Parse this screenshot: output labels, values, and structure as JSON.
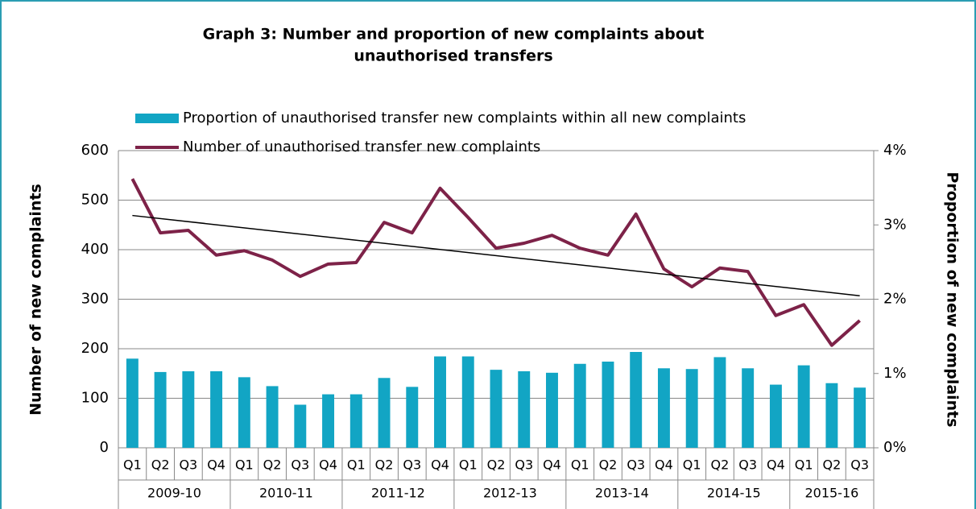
{
  "chart_data": {
    "type": "bar-line",
    "title": [
      "Graph 3:  Number and proportion of new complaints about",
      "unauthorised transfers"
    ],
    "y_label": "Number of new complaints",
    "y2_label": "Proportion of new complaints",
    "categories": [
      "Q1",
      "Q2",
      "Q3",
      "Q4",
      "Q1",
      "Q2",
      "Q3",
      "Q4",
      "Q1",
      "Q2",
      "Q3",
      "Q4",
      "Q1",
      "Q2",
      "Q3",
      "Q4",
      "Q1",
      "Q2",
      "Q3",
      "Q4",
      "Q1",
      "Q2",
      "Q3",
      "Q4",
      "Q1",
      "Q2",
      "Q3"
    ],
    "groups": [
      {
        "label": "2009-10",
        "span": 4
      },
      {
        "label": "2010-11",
        "span": 4
      },
      {
        "label": "2011-12",
        "span": 4
      },
      {
        "label": "2012-13",
        "span": 4
      },
      {
        "label": "2013-14",
        "span": 4
      },
      {
        "label": "2014-15",
        "span": 4
      },
      {
        "label": "2015-16",
        "span": 3
      }
    ],
    "series": [
      {
        "name": "Proportion of unauthorised transfer new complaints within all new complaints",
        "type": "bar",
        "axis": "y2",
        "color": "#12a5c4",
        "values": [
          1.2,
          1.02,
          1.03,
          1.03,
          0.95,
          0.83,
          0.58,
          0.72,
          0.72,
          0.94,
          0.82,
          1.23,
          1.23,
          1.05,
          1.03,
          1.01,
          1.13,
          1.16,
          1.29,
          1.07,
          1.06,
          1.22,
          1.07,
          0.85,
          1.11,
          0.87,
          0.81
        ]
      },
      {
        "name": "Number of unauthorised transfer new complaints",
        "type": "line",
        "color": "#7d2248",
        "values": [
          543,
          434,
          439,
          389,
          398,
          379,
          346,
          371,
          374,
          455,
          434,
          524,
          465,
          403,
          413,
          429,
          403,
          389,
          472,
          361,
          325,
          363,
          356,
          267,
          289,
          207,
          257
        ]
      }
    ],
    "trendline": {
      "color": "#000000",
      "values": [
        469,
        307
      ]
    },
    "ylim": [
      0,
      600
    ],
    "yticks": [
      0,
      100,
      200,
      300,
      400,
      500,
      600
    ],
    "y2lim": [
      0,
      4
    ],
    "y2ticks": [
      {
        "value": 0,
        "label": "0%"
      },
      {
        "value": 1,
        "label": "1%"
      },
      {
        "value": 2,
        "label": "2%"
      },
      {
        "value": 3,
        "label": "3%"
      },
      {
        "value": 4,
        "label": "4%"
      }
    ],
    "grid": true
  }
}
